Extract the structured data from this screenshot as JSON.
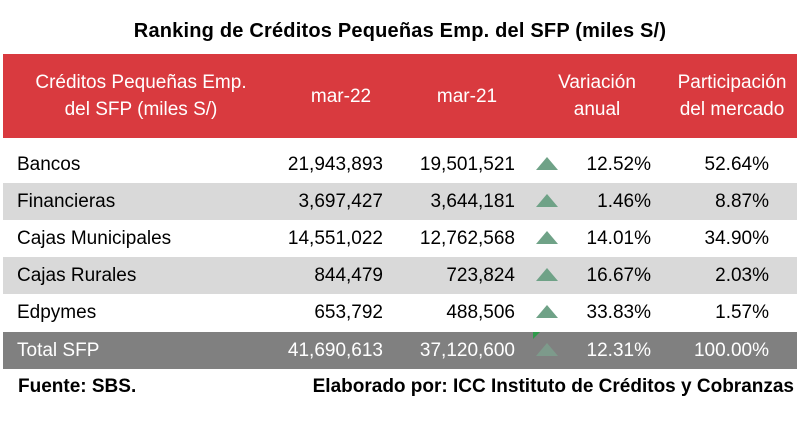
{
  "title": "Ranking de Créditos Pequeñas Emp. del SFP (miles S/)",
  "header": {
    "label_line1": "Créditos Pequeñas Emp.",
    "label_line2": "del SFP (miles S/)",
    "col_a": "mar-22",
    "col_b": "mar-21",
    "var_line1": "Variación",
    "var_line2": "anual",
    "part_line1": "Participación",
    "part_line2": "del mercado"
  },
  "rows": [
    {
      "name": "Bancos",
      "a": "21,943,893",
      "b": "19,501,521",
      "trend_icon": "up-triangle-icon",
      "var": "12.52%",
      "part": "52.64%"
    },
    {
      "name": "Financieras",
      "a": "3,697,427",
      "b": "3,644,181",
      "trend_icon": "up-triangle-icon",
      "var": "1.46%",
      "part": "8.87%"
    },
    {
      "name": "Cajas Municipales",
      "a": "14,551,022",
      "b": "12,762,568",
      "trend_icon": "up-triangle-icon",
      "var": "14.01%",
      "part": "34.90%"
    },
    {
      "name": "Cajas Rurales",
      "a": "844,479",
      "b": "723,824",
      "trend_icon": "up-triangle-icon",
      "var": "16.67%",
      "part": "2.03%"
    },
    {
      "name": "Edpymes",
      "a": "653,792",
      "b": "488,506",
      "trend_icon": "up-triangle-icon",
      "var": "33.83%",
      "part": "1.57%"
    }
  ],
  "total": {
    "name": "Total SFP",
    "a": "41,690,613",
    "b": "37,120,600",
    "trend_icon": "up-triangle-icon",
    "var": "12.31%",
    "part": "100.00%"
  },
  "colors": {
    "header_bg": "#d93a3f",
    "alt_row_bg": "#d9d9d9",
    "total_row_bg": "#808080",
    "trend_up": "#6fa287"
  },
  "footer": {
    "source": "Fuente: SBS.",
    "credit": "Elaborado por: ICC Instituto de Créditos y Cobranzas"
  }
}
